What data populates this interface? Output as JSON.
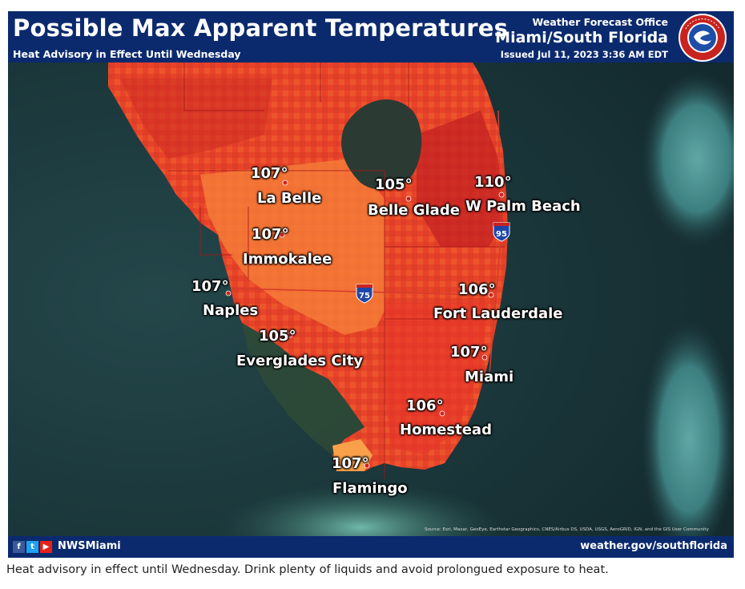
{
  "map": {
    "title": "Possible Max Apparent Temperatures",
    "subtitle": "Heat Advisory in Effect Until Wednesday",
    "office_line": "Weather Forecast Office",
    "office_name": "Miami/South Florida",
    "issued": "Issued Jul 11, 2023 3:36 AM EDT",
    "logo_text": "NATIONAL WEATHER SERVICE",
    "highways": [
      "75",
      "95"
    ],
    "source": "Source: Esri, Maxar, GeoEye, Earthstar Geographics, CNES/Airbus DS, USDA, USGS, AeroGRID, IGN, and the GIS User Community",
    "cities": [
      {
        "temp": "107°",
        "name": "La Belle"
      },
      {
        "temp": "105°",
        "name": "Belle Glade"
      },
      {
        "temp": "110°",
        "name": "W Palm Beach"
      },
      {
        "temp": "107°",
        "name": "Immokalee"
      },
      {
        "temp": "107°",
        "name": "Naples"
      },
      {
        "temp": "106°",
        "name": "Fort Lauderdale"
      },
      {
        "temp": "105°",
        "name": "Everglades City"
      },
      {
        "temp": "107°",
        "name": "Miami"
      },
      {
        "temp": "106°",
        "name": "Homestead"
      },
      {
        "temp": "107°",
        "name": "Flamingo"
      }
    ],
    "colors": {
      "header": "#0b2a6e",
      "heat_dark": "#c8231f",
      "heat_mid": "#ef4a26",
      "heat_light": "#f7823a",
      "lake": "#2b3a33",
      "ocean": "#1f3d40"
    }
  },
  "footer": {
    "social_icons": [
      "facebook-icon",
      "twitter-icon",
      "youtube-icon"
    ],
    "handle": "NWSMiami",
    "website": "weather.gov/southflorida"
  },
  "caption": "Heat advisory in effect until Wednesday. Drink plenty of liquids and avoid prolongued exposure to heat."
}
